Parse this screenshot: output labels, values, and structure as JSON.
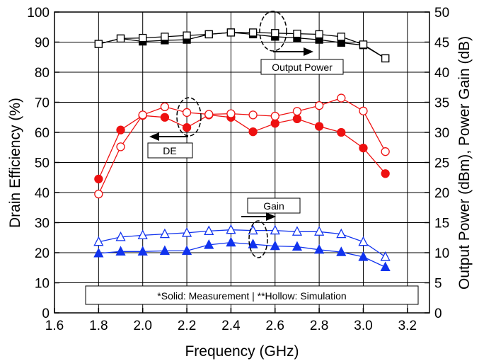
{
  "chart_data": {
    "type": "line",
    "title": "",
    "xlabel": "Frequency (GHz)",
    "ylabel": "Drain Efficiency (%)",
    "y2label": "Output Power (dBm), Power Gain (dB)",
    "xlim": [
      1.6,
      3.3
    ],
    "ylim": [
      0,
      100
    ],
    "y2lim": [
      0,
      50
    ],
    "xticks": [
      "1.6",
      "1.8",
      "2.0",
      "2.2",
      "2.4",
      "2.6",
      "2.8",
      "3.0",
      "3.2"
    ],
    "yticks": [
      "0",
      "10",
      "20",
      "30",
      "40",
      "50",
      "60",
      "70",
      "80",
      "90",
      "100"
    ],
    "y2ticks": [
      "0",
      "5",
      "10",
      "15",
      "20",
      "25",
      "30",
      "35",
      "40",
      "45",
      "50"
    ],
    "grid": true,
    "x": [
      1.8,
      1.9,
      2.0,
      2.1,
      2.2,
      2.3,
      2.4,
      2.5,
      2.6,
      2.7,
      2.8,
      2.9,
      3.0,
      3.1
    ],
    "series": [
      {
        "key": "pout_meas",
        "axis": "right",
        "marker": "square",
        "filled": true,
        "color": "#000000",
        "values": [
          44.7,
          45.6,
          45.1,
          45.3,
          45.4,
          46.3,
          46.6,
          46.3,
          45.9,
          45.7,
          45.4,
          44.9,
          44.5,
          42.3
        ]
      },
      {
        "key": "pout_sim",
        "axis": "right",
        "marker": "square",
        "filled": false,
        "color": "#000000",
        "values": [
          44.7,
          45.6,
          45.7,
          45.9,
          46.1,
          46.3,
          46.6,
          46.6,
          46.5,
          46.4,
          46.3,
          45.9,
          44.6,
          42.3
        ]
      },
      {
        "key": "de_meas",
        "axis": "left",
        "marker": "circle",
        "filled": true,
        "color": "#ee1111",
        "values": [
          44.5,
          60.8,
          65.6,
          65.0,
          61.6,
          65.8,
          65.0,
          60.2,
          63.0,
          64.5,
          62.0,
          60.0,
          54.8,
          46.3
        ]
      },
      {
        "key": "de_sim",
        "axis": "left",
        "marker": "circle",
        "filled": false,
        "color": "#ee1111",
        "values": [
          39.5,
          55.2,
          65.8,
          68.5,
          66.6,
          66.0,
          66.2,
          65.8,
          65.4,
          67.0,
          68.9,
          71.4,
          67.1,
          53.6
        ]
      },
      {
        "key": "gain_meas",
        "axis": "right",
        "marker": "triangle",
        "filled": true,
        "color": "#1133ee",
        "values": [
          9.9,
          10.2,
          10.2,
          10.3,
          10.3,
          11.3,
          11.7,
          11.4,
          11.1,
          11.0,
          10.5,
          10.1,
          9.3,
          7.6
        ]
      },
      {
        "key": "gain_sim",
        "axis": "right",
        "marker": "triangle",
        "filled": false,
        "color": "#1133ee",
        "values": [
          11.8,
          12.6,
          12.9,
          13.1,
          13.3,
          13.6,
          13.8,
          13.7,
          13.7,
          13.5,
          13.5,
          13.1,
          11.8,
          9.3
        ]
      }
    ],
    "annotations": {
      "output_power": "Output Power",
      "de": "DE",
      "gain": "Gain",
      "note": "*Solid: Measurement  | **Hollow: Simulation"
    }
  }
}
